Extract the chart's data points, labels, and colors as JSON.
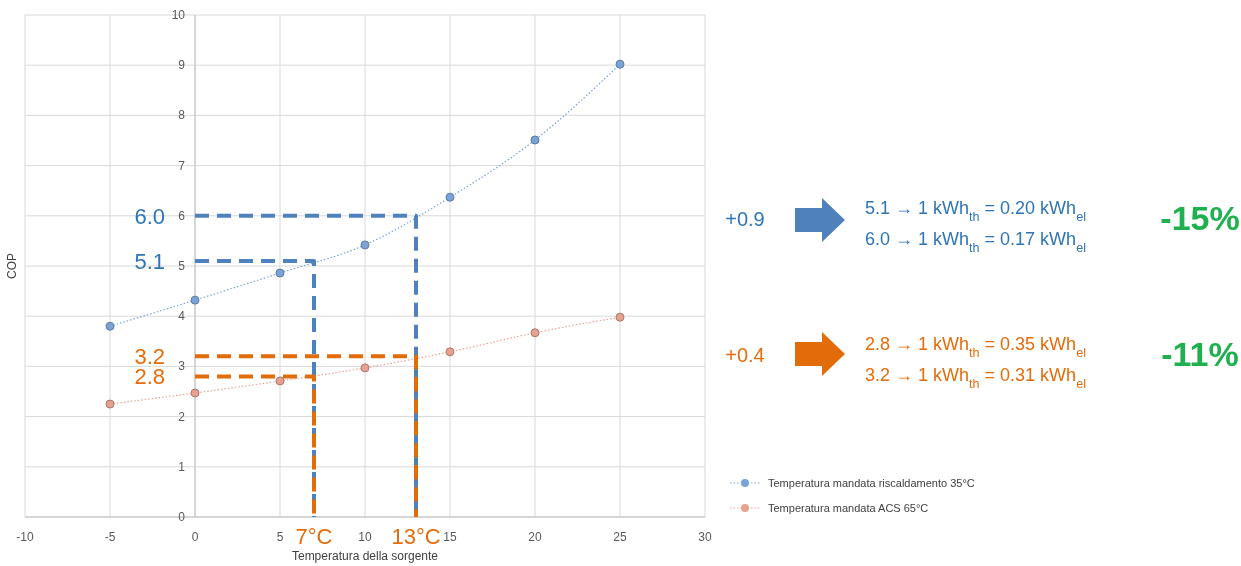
{
  "chart_data": {
    "type": "line",
    "xlabel": "Temperatura della sorgente",
    "ylabel": "COP",
    "x": [
      -5,
      0,
      5,
      10,
      15,
      20,
      25
    ],
    "xlim": [
      -10,
      30
    ],
    "xticks": [
      -10,
      -5,
      0,
      5,
      10,
      15,
      20,
      25,
      30
    ],
    "ylim": [
      0,
      10
    ],
    "yticks": [
      0,
      1,
      2,
      3,
      4,
      5,
      6,
      7,
      8,
      9,
      10
    ],
    "grid": true,
    "legend": "bottom right",
    "marker": "circle",
    "line_style": "dotted",
    "series": [
      {
        "name": "Temperatura mandata riscaldamento 35°C",
        "color": "#7ba3d8",
        "values": [
          3.8,
          4.32,
          4.86,
          5.42,
          6.37,
          7.51,
          9.02
        ]
      },
      {
        "name": "Temperatura mandata ACS 65°C",
        "color": "#e8a090",
        "values": [
          2.25,
          2.47,
          2.71,
          2.97,
          3.29,
          3.67,
          3.98
        ]
      },
      {
        "color": "#4f81bd",
        "x": [
          0,
          13,
          13
        ],
        "values": [
          6.0,
          6.0,
          0
        ],
        "line_style": "dashed",
        "marker": "none"
      },
      {
        "color": "#4f81bd",
        "x": [
          0,
          7,
          7
        ],
        "values": [
          5.1,
          5.1,
          0
        ],
        "line_style": "dashed",
        "marker": "none"
      },
      {
        "color": "#e36c0a",
        "x": [
          0,
          13,
          13
        ],
        "values": [
          3.2,
          3.2,
          0
        ],
        "line_style": "dashed",
        "marker": "none"
      },
      {
        "color": "#e36c0a",
        "x": [
          0,
          7,
          7
        ],
        "values": [
          2.8,
          2.8,
          0
        ],
        "line_style": "dashed",
        "marker": "none"
      }
    ],
    "annotations": [
      {
        "text": "6.0",
        "x": 0,
        "y": 6.0
      },
      {
        "text": "5.1",
        "x": 0,
        "y": 5.1
      },
      {
        "text": "3.2",
        "x": 0,
        "y": 3.2
      },
      {
        "text": "2.8",
        "x": 0,
        "y": 2.8
      },
      {
        "text": "7°C",
        "x": 7,
        "y": 0
      },
      {
        "text": "13°C",
        "x": 13,
        "y": 0
      },
      "+0.9",
      "5.1 → 1 kWh$_{th}$ = 0.20 kWh$_{el}$",
      "6.0 → 1 kWh$_{th}$ = 0.17 kWh$_{el}$",
      "-15%",
      "+0.4",
      "2.8 → 1 kWh$_{th}$ = 0.35 kWh$_{el}$",
      "3.2 → 1 kWh$_{th}$ = 0.31 kWh$_{el}$",
      "-11%"
    ]
  }
}
